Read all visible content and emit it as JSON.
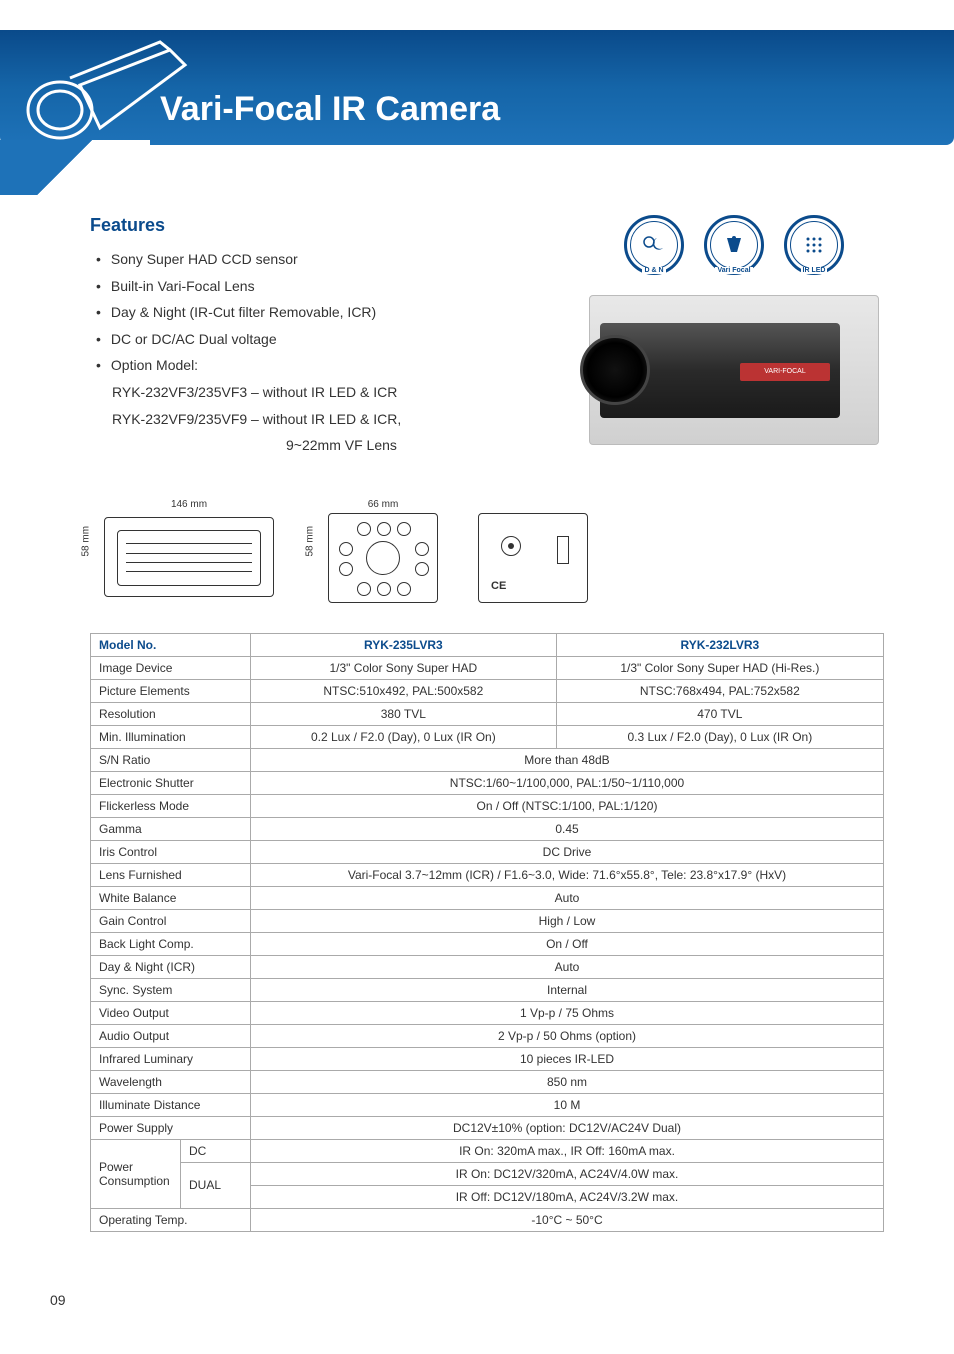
{
  "header": {
    "title": "Vari-Focal IR Camera",
    "banner_gradient": [
      "#0a4a8a",
      "#1e72b8"
    ],
    "title_color": "#ffffff",
    "title_fontsize": 34
  },
  "features": {
    "heading": "Features",
    "heading_color": "#0b4b8c",
    "items": [
      "Sony Super HAD CCD sensor",
      "Built-in Vari-Focal Lens",
      "Day & Night (IR-Cut filter Removable, ICR)",
      "DC or DC/AC Dual voltage",
      "Option Model:"
    ],
    "option_lines": [
      "RYK-232VF3/235VF3 – without IR LED & ICR",
      "RYK-232VF9/235VF9 – without IR LED & ICR,",
      "9~22mm VF Lens"
    ]
  },
  "badges": [
    {
      "label": "D & N",
      "icon": "sun-moon"
    },
    {
      "label": "Vari Focal",
      "icon": "lens"
    },
    {
      "label": "IR LED",
      "icon": "led-grid"
    }
  ],
  "product_photo": {
    "label": "VARI-FOCAL",
    "label_bg": "#b33333"
  },
  "diagrams": {
    "side": {
      "width_mm": "146 mm",
      "height_mm": "58 mm"
    },
    "front": {
      "width_mm": "66 mm",
      "height_mm": "58 mm",
      "led_count": 10
    },
    "back": {
      "ce_mark": "CE"
    }
  },
  "spec_table": {
    "header_color": "#0b4b8c",
    "border_color": "#aaaaaa",
    "fontsize": 12,
    "headers": [
      "Model No.",
      "RYK-235LVR3",
      "RYK-232LVR3"
    ],
    "rows": [
      {
        "label": "Image Device",
        "v1": "1/3\" Color Sony Super HAD",
        "v2": "1/3\" Color Sony Super HAD (Hi-Res.)"
      },
      {
        "label": "Picture Elements",
        "v1": "NTSC:510x492, PAL:500x582",
        "v2": "NTSC:768x494, PAL:752x582"
      },
      {
        "label": "Resolution",
        "v1": "380 TVL",
        "v2": "470 TVL"
      },
      {
        "label": "Min. Illumination",
        "v1": "0.2 Lux / F2.0 (Day), 0 Lux (IR On)",
        "v2": "0.3 Lux / F2.0 (Day), 0 Lux (IR On)"
      },
      {
        "label": "S/N Ratio",
        "span": "More than 48dB"
      },
      {
        "label": "Electronic Shutter",
        "span": "NTSC:1/60~1/100,000, PAL:1/50~1/110,000"
      },
      {
        "label": "Flickerless Mode",
        "span": "On / Off (NTSC:1/100, PAL:1/120)"
      },
      {
        "label": "Gamma",
        "span": "0.45"
      },
      {
        "label": "Iris Control",
        "span": "DC Drive"
      },
      {
        "label": "Lens Furnished",
        "span": "Vari-Focal 3.7~12mm (ICR) / F1.6~3.0, Wide: 71.6°x55.8°, Tele: 23.8°x17.9° (HxV)"
      },
      {
        "label": "White Balance",
        "span": "Auto"
      },
      {
        "label": "Gain Control",
        "span": "High / Low"
      },
      {
        "label": "Back Light Comp.",
        "span": "On / Off"
      },
      {
        "label": "Day & Night (ICR)",
        "span": "Auto"
      },
      {
        "label": "Sync. System",
        "span": "Internal"
      },
      {
        "label": "Video Output",
        "span": "1 Vp-p / 75 Ohms"
      },
      {
        "label": "Audio Output",
        "span": "2 Vp-p / 50 Ohms (option)"
      },
      {
        "label": "Infrared Luminary",
        "span": "10 pieces IR-LED"
      },
      {
        "label": "Wavelength",
        "span": "850 nm"
      },
      {
        "label": "Illuminate Distance",
        "span": "10 M"
      },
      {
        "label": "Power Supply",
        "span": "DC12V±10% (option: DC12V/AC24V Dual)"
      }
    ],
    "power_consumption": {
      "label": "Power Consumption",
      "dc_label": "DC",
      "dc_value": "IR On: 320mA max., IR Off: 160mA max.",
      "dual_label": "DUAL",
      "dual_line1": "IR On: DC12V/320mA, AC24V/4.0W max.",
      "dual_line2": "IR Off: DC12V/180mA, AC24V/3.2W max."
    },
    "operating_temp": {
      "label": "Operating Temp.",
      "span": "-10°C ~ 50°C"
    }
  },
  "page_number": "09",
  "colors": {
    "brand_blue": "#0b4b8c",
    "text": "#333333",
    "border": "#aaaaaa",
    "background": "#ffffff"
  }
}
